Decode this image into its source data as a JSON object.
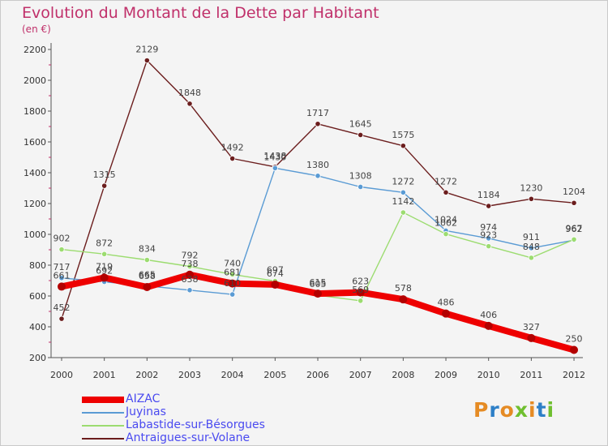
{
  "header": {
    "title": "Evolution du Montant de la Dette par Habitant",
    "subtitle": "(en €)"
  },
  "logo": {
    "text": "Proxiti",
    "colors": [
      "#e58b24",
      "#2d7fc7",
      "#e58b24",
      "#6fbf2f",
      "#e58b24",
      "#2d7fc7",
      "#6fbf2f"
    ]
  },
  "chart_data": {
    "type": "line",
    "title": "Evolution du Montant de la Dette par Habitant",
    "ylabel": "(en €)",
    "x": [
      "2000",
      "2001",
      "2002",
      "2003",
      "2004",
      "2005",
      "2006",
      "2007",
      "2008",
      "2009",
      "2010",
      "2011",
      "2012"
    ],
    "ylim": [
      200,
      2200
    ],
    "yticks": [
      200,
      400,
      600,
      800,
      1000,
      1200,
      1400,
      1600,
      1800,
      2000,
      2200
    ],
    "grid": false,
    "legend_position": "bottom-left",
    "series": [
      {
        "name": "Antraigues-sur-Volane",
        "color": "#6b1d1d",
        "values": [
          452,
          1315,
          2129,
          1848,
          1492,
          1438,
          1717,
          1645,
          1575,
          1272,
          1184,
          1230,
          1204
        ]
      },
      {
        "name": "Juyinas",
        "color": "#5a9bd4",
        "values": [
          717,
          692,
          665,
          638,
          610,
          1430,
          1380,
          1308,
          1272,
          1024,
          974,
          911,
          962
        ]
      },
      {
        "name": "Labastide-sur-Bésorgues",
        "color": "#9cdc70",
        "values": [
          902,
          872,
          834,
          792,
          740,
          697,
          605,
          569,
          1142,
          1002,
          923,
          848,
          967
        ]
      },
      {
        "name": "AIZAC",
        "color": "#ee0000",
        "values": [
          661,
          719,
          658,
          738,
          681,
          674,
          615,
          623,
          578,
          486,
          406,
          327,
          250
        ]
      }
    ]
  }
}
